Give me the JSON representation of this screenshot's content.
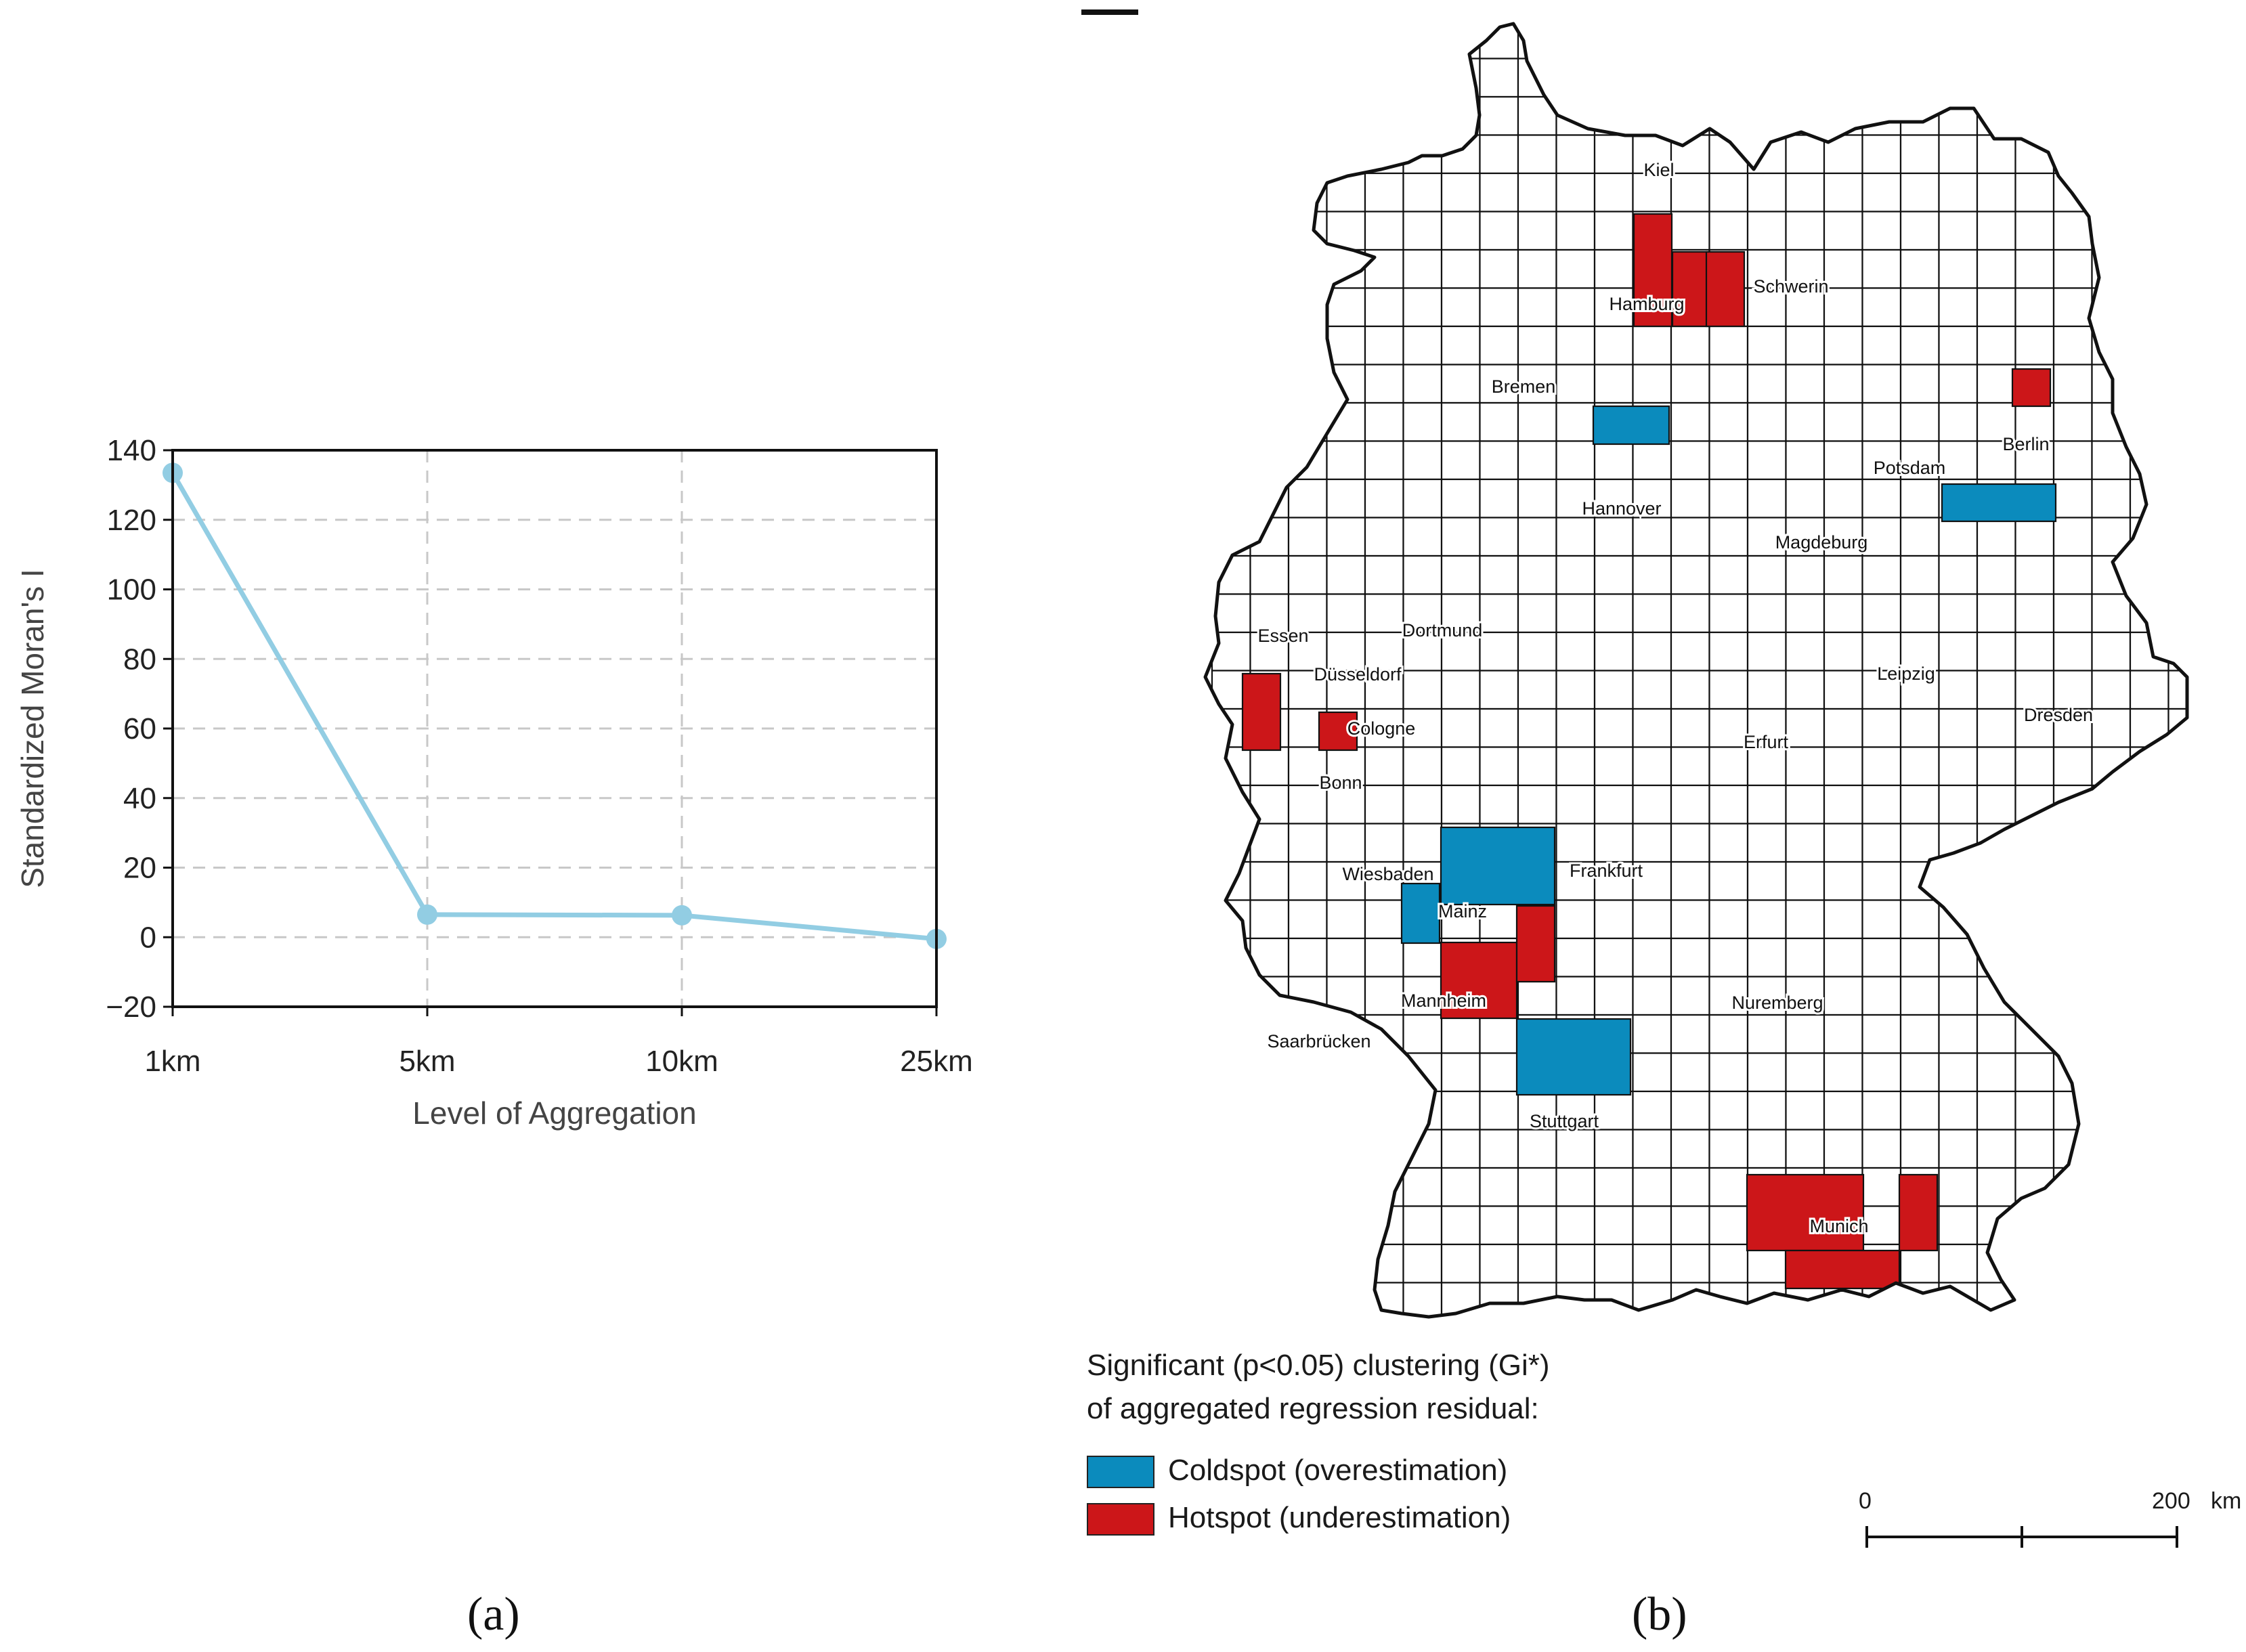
{
  "captions": {
    "a": "(a)",
    "b": "(b)"
  },
  "chart_data": {
    "type": "line",
    "categories": [
      "1km",
      "5km",
      "10km",
      "25km"
    ],
    "values": [
      133.5,
      6.5,
      6.3,
      -0.5
    ],
    "xlabel": "Level of Aggregation",
    "ylabel": "Standardized Moran's I",
    "ylim": [
      -20,
      140
    ],
    "yticks": [
      140,
      120,
      100,
      80,
      60,
      40,
      20,
      0,
      -20
    ],
    "ytick_labels": [
      "140",
      "120",
      "100",
      "80",
      "60",
      "40",
      "20",
      "0",
      "−20"
    ],
    "grid": true,
    "color": "#92cde3"
  },
  "map": {
    "cities": [
      "Kiel",
      "Hamburg",
      "Schwerin",
      "Bremen",
      "Berlin",
      "Potsdam",
      "Hannover",
      "Magdeburg",
      "Dortmund",
      "Essen",
      "Düsseldorf",
      "Leipzig",
      "Cologne",
      "Dresden",
      "Erfurt",
      "Bonn",
      "Frankfurt",
      "Wiesbaden",
      "Mainz",
      "Mannheim",
      "Nuremberg",
      "Saarbrücken",
      "Stuttgart",
      "Munich"
    ],
    "legend": {
      "title_line1": "Significant (p<0.05) clustering (Gi*)",
      "title_line2": "of aggregated regression residual:",
      "coldspot": "Coldspot (overestimation)",
      "hotspot": "Hotspot (underestimation)",
      "coldspot_color": "#0b8bbd",
      "hotspot_color": "#cc1619"
    },
    "scale": {
      "start": "0",
      "end": "200",
      "unit": "km"
    }
  }
}
